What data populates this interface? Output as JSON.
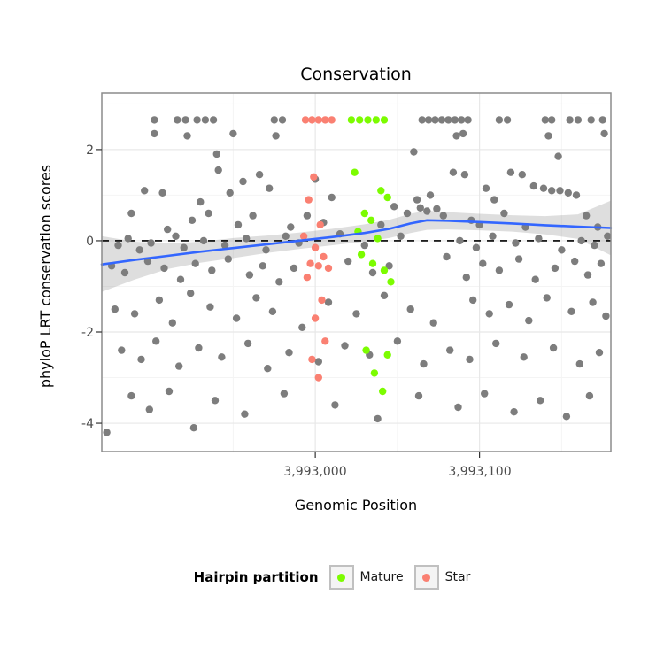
{
  "title": "Conservation",
  "axes": {
    "x_label": "Genomic Position",
    "y_label": "phyloP LRT conservation scores",
    "x_ticks": [
      {
        "value": 3993000,
        "label": "3,993,000"
      },
      {
        "value": 3993100,
        "label": "3,993,100"
      }
    ],
    "y_ticks": [
      {
        "value": -4,
        "label": "-4"
      },
      {
        "value": -2,
        "label": "-2"
      },
      {
        "value": 0,
        "label": "0"
      },
      {
        "value": 2,
        "label": "2"
      }
    ]
  },
  "legend": {
    "title": "Hairpin partition",
    "items": [
      {
        "label": "Mature",
        "color": "#7CFC00"
      },
      {
        "label": "Star",
        "color": "#FA8072"
      }
    ]
  },
  "colors": {
    "point_default": "#7d7d7d",
    "mature": "#7CFC00",
    "star": "#FA8072",
    "smooth_line": "#3366FF",
    "ribbon": "#999999",
    "panel_border": "#8c8c8c",
    "grid_major": "#e8e8e8",
    "grid_minor": "#f4f4f4",
    "reference_line": "#000000"
  },
  "chart_data": {
    "type": "scatter",
    "title": "Conservation",
    "xlabel": "Genomic Position",
    "ylabel": "phyloP LRT conservation scores",
    "xlim": [
      3992870,
      3993180
    ],
    "ylim": [
      -4.62,
      3.24
    ],
    "x_major": [
      3993000,
      3993100
    ],
    "x_minor": [
      3992950,
      3993050,
      3993150
    ],
    "y_major": [
      -4,
      -2,
      0,
      2
    ],
    "y_minor": [
      -3,
      -1,
      1,
      3
    ],
    "reference_line_y": 0,
    "legend_position": "bottom",
    "series": [
      {
        "name": "Other",
        "color": "#7d7d7d",
        "points": [
          [
            3992902,
            2.65
          ],
          [
            3992916,
            2.65
          ],
          [
            3992921,
            2.65
          ],
          [
            3992928,
            2.65
          ],
          [
            3992933,
            2.65
          ],
          [
            3992938,
            2.65
          ],
          [
            3992975,
            2.65
          ],
          [
            3992980,
            2.65
          ],
          [
            3993065,
            2.65
          ],
          [
            3993069,
            2.65
          ],
          [
            3993073,
            2.65
          ],
          [
            3993077,
            2.65
          ],
          [
            3993081,
            2.65
          ],
          [
            3993085,
            2.65
          ],
          [
            3993089,
            2.65
          ],
          [
            3993093,
            2.65
          ],
          [
            3993112,
            2.65
          ],
          [
            3993117,
            2.65
          ],
          [
            3993140,
            2.65
          ],
          [
            3993144,
            2.65
          ],
          [
            3993155,
            2.65
          ],
          [
            3993160,
            2.65
          ],
          [
            3993168,
            2.65
          ],
          [
            3993175,
            2.65
          ],
          [
            3992902,
            2.35
          ],
          [
            3992922,
            2.3
          ],
          [
            3992950,
            2.35
          ],
          [
            3992976,
            2.3
          ],
          [
            3993086,
            2.3
          ],
          [
            3993090,
            2.35
          ],
          [
            3993142,
            2.3
          ],
          [
            3993176,
            2.35
          ],
          [
            3992940,
            1.9
          ],
          [
            3993148,
            1.85
          ],
          [
            3993060,
            1.95
          ],
          [
            3992896,
            1.1
          ],
          [
            3992907,
            1.05
          ],
          [
            3992941,
            1.55
          ],
          [
            3992948,
            1.05
          ],
          [
            3992956,
            1.3
          ],
          [
            3992966,
            1.45
          ],
          [
            3992972,
            1.15
          ],
          [
            3993000,
            1.35
          ],
          [
            3993010,
            0.95
          ],
          [
            3993084,
            1.5
          ],
          [
            3993091,
            1.45
          ],
          [
            3993104,
            1.15
          ],
          [
            3993109,
            0.9
          ],
          [
            3993119,
            1.5
          ],
          [
            3993126,
            1.45
          ],
          [
            3993133,
            1.2
          ],
          [
            3993139,
            1.15
          ],
          [
            3993144,
            1.1
          ],
          [
            3993149,
            1.1
          ],
          [
            3993154,
            1.05
          ],
          [
            3993159,
            1.0
          ],
          [
            3992930,
            0.85
          ],
          [
            3993062,
            0.9
          ],
          [
            3993070,
            1.0
          ],
          [
            3992888,
            0.6
          ],
          [
            3992925,
            0.45
          ],
          [
            3992935,
            0.6
          ],
          [
            3992953,
            0.35
          ],
          [
            3992962,
            0.55
          ],
          [
            3992985,
            0.3
          ],
          [
            3992995,
            0.55
          ],
          [
            3993005,
            0.4
          ],
          [
            3993048,
            0.75
          ],
          [
            3993056,
            0.6
          ],
          [
            3993064,
            0.72
          ],
          [
            3993068,
            0.65
          ],
          [
            3993074,
            0.7
          ],
          [
            3993078,
            0.55
          ],
          [
            3993095,
            0.45
          ],
          [
            3993100,
            0.35
          ],
          [
            3993115,
            0.6
          ],
          [
            3993128,
            0.3
          ],
          [
            3993165,
            0.55
          ],
          [
            3993172,
            0.3
          ],
          [
            3992910,
            0.25
          ],
          [
            3993040,
            0.35
          ],
          [
            3992880,
            -0.1
          ],
          [
            3992886,
            0.05
          ],
          [
            3992893,
            -0.2
          ],
          [
            3992900,
            -0.05
          ],
          [
            3992915,
            0.1
          ],
          [
            3992920,
            -0.15
          ],
          [
            3992932,
            0.0
          ],
          [
            3992945,
            -0.1
          ],
          [
            3992958,
            0.05
          ],
          [
            3992970,
            -0.2
          ],
          [
            3992982,
            0.1
          ],
          [
            3992990,
            -0.05
          ],
          [
            3993015,
            0.15
          ],
          [
            3993030,
            -0.1
          ],
          [
            3993052,
            0.1
          ],
          [
            3993088,
            0.0
          ],
          [
            3993098,
            -0.15
          ],
          [
            3993108,
            0.1
          ],
          [
            3993122,
            -0.05
          ],
          [
            3993136,
            0.05
          ],
          [
            3993150,
            -0.2
          ],
          [
            3993162,
            0.0
          ],
          [
            3993170,
            -0.1
          ],
          [
            3993178,
            0.1
          ],
          [
            3992876,
            -0.55
          ],
          [
            3992884,
            -0.7
          ],
          [
            3992898,
            -0.45
          ],
          [
            3992908,
            -0.6
          ],
          [
            3992918,
            -0.85
          ],
          [
            3992927,
            -0.5
          ],
          [
            3992937,
            -0.65
          ],
          [
            3992947,
            -0.4
          ],
          [
            3992960,
            -0.75
          ],
          [
            3992968,
            -0.55
          ],
          [
            3992978,
            -0.9
          ],
          [
            3992987,
            -0.6
          ],
          [
            3993020,
            -0.45
          ],
          [
            3993035,
            -0.7
          ],
          [
            3993045,
            -0.55
          ],
          [
            3993080,
            -0.35
          ],
          [
            3993092,
            -0.8
          ],
          [
            3993102,
            -0.5
          ],
          [
            3993112,
            -0.65
          ],
          [
            3993124,
            -0.4
          ],
          [
            3993134,
            -0.85
          ],
          [
            3993146,
            -0.6
          ],
          [
            3993158,
            -0.45
          ],
          [
            3993166,
            -0.75
          ],
          [
            3993174,
            -0.5
          ],
          [
            3992878,
            -1.5
          ],
          [
            3992890,
            -1.6
          ],
          [
            3992905,
            -1.3
          ],
          [
            3992913,
            -1.8
          ],
          [
            3992924,
            -1.15
          ],
          [
            3992936,
            -1.45
          ],
          [
            3992952,
            -1.7
          ],
          [
            3992964,
            -1.25
          ],
          [
            3992974,
            -1.55
          ],
          [
            3992992,
            -1.9
          ],
          [
            3993008,
            -1.35
          ],
          [
            3993025,
            -1.6
          ],
          [
            3993042,
            -1.2
          ],
          [
            3993058,
            -1.5
          ],
          [
            3993072,
            -1.8
          ],
          [
            3993096,
            -1.3
          ],
          [
            3993106,
            -1.6
          ],
          [
            3993118,
            -1.4
          ],
          [
            3993130,
            -1.75
          ],
          [
            3993141,
            -1.25
          ],
          [
            3993156,
            -1.55
          ],
          [
            3993169,
            -1.35
          ],
          [
            3993177,
            -1.65
          ],
          [
            3992882,
            -2.4
          ],
          [
            3992894,
            -2.6
          ],
          [
            3992903,
            -2.2
          ],
          [
            3992917,
            -2.75
          ],
          [
            3992929,
            -2.35
          ],
          [
            3992943,
            -2.55
          ],
          [
            3992959,
            -2.25
          ],
          [
            3992971,
            -2.8
          ],
          [
            3992984,
            -2.45
          ],
          [
            3993002,
            -2.65
          ],
          [
            3993018,
            -2.3
          ],
          [
            3993033,
            -2.5
          ],
          [
            3993050,
            -2.2
          ],
          [
            3993066,
            -2.7
          ],
          [
            3993082,
            -2.4
          ],
          [
            3993094,
            -2.6
          ],
          [
            3993110,
            -2.25
          ],
          [
            3993127,
            -2.55
          ],
          [
            3993145,
            -2.35
          ],
          [
            3993161,
            -2.7
          ],
          [
            3993173,
            -2.45
          ],
          [
            3992888,
            -3.4
          ],
          [
            3992899,
            -3.7
          ],
          [
            3992911,
            -3.3
          ],
          [
            3992926,
            -4.1
          ],
          [
            3992939,
            -3.5
          ],
          [
            3992957,
            -3.8
          ],
          [
            3992981,
            -3.35
          ],
          [
            3993012,
            -3.6
          ],
          [
            3993038,
            -3.9
          ],
          [
            3993063,
            -3.4
          ],
          [
            3993087,
            -3.65
          ],
          [
            3993103,
            -3.35
          ],
          [
            3993121,
            -3.75
          ],
          [
            3993137,
            -3.5
          ],
          [
            3993153,
            -3.85
          ],
          [
            3993167,
            -3.4
          ],
          [
            3992873,
            -4.2
          ]
        ]
      },
      {
        "name": "Mature",
        "color": "#7CFC00",
        "points": [
          [
            3993022,
            2.65
          ],
          [
            3993027,
            2.65
          ],
          [
            3993032,
            2.65
          ],
          [
            3993037,
            2.65
          ],
          [
            3993042,
            2.65
          ],
          [
            3993024,
            1.5
          ],
          [
            3993040,
            1.1
          ],
          [
            3993044,
            0.95
          ],
          [
            3993030,
            0.6
          ],
          [
            3993034,
            0.45
          ],
          [
            3993026,
            0.2
          ],
          [
            3993038,
            0.05
          ],
          [
            3993028,
            -0.3
          ],
          [
            3993035,
            -0.5
          ],
          [
            3993042,
            -0.65
          ],
          [
            3993046,
            -0.9
          ],
          [
            3993031,
            -2.4
          ],
          [
            3993044,
            -2.5
          ],
          [
            3993036,
            -2.9
          ],
          [
            3993041,
            -3.3
          ]
        ]
      },
      {
        "name": "Star",
        "color": "#FA8072",
        "points": [
          [
            3992994,
            2.65
          ],
          [
            3992998,
            2.65
          ],
          [
            3993002,
            2.65
          ],
          [
            3993006,
            2.65
          ],
          [
            3993010,
            2.65
          ],
          [
            3992999,
            1.4
          ],
          [
            3992996,
            0.9
          ],
          [
            3993003,
            0.35
          ],
          [
            3992993,
            0.1
          ],
          [
            3993000,
            -0.15
          ],
          [
            3993005,
            -0.35
          ],
          [
            3992997,
            -0.5
          ],
          [
            3993002,
            -0.55
          ],
          [
            3993008,
            -0.6
          ],
          [
            3992995,
            -0.8
          ],
          [
            3993004,
            -1.3
          ],
          [
            3993000,
            -1.7
          ],
          [
            3993006,
            -2.2
          ],
          [
            3992998,
            -2.6
          ],
          [
            3993002,
            -3.0
          ]
        ]
      }
    ],
    "smooth": {
      "color": "#3366FF",
      "line": [
        [
          3992870,
          -0.52
        ],
        [
          3992890,
          -0.42
        ],
        [
          3992910,
          -0.33
        ],
        [
          3992930,
          -0.24
        ],
        [
          3992950,
          -0.16
        ],
        [
          3992970,
          -0.08
        ],
        [
          3992990,
          0.0
        ],
        [
          3993010,
          0.08
        ],
        [
          3993030,
          0.17
        ],
        [
          3993045,
          0.26
        ],
        [
          3993058,
          0.38
        ],
        [
          3993068,
          0.45
        ],
        [
          3993080,
          0.44
        ],
        [
          3993100,
          0.41
        ],
        [
          3993120,
          0.38
        ],
        [
          3993140,
          0.34
        ],
        [
          3993160,
          0.31
        ],
        [
          3993180,
          0.28
        ]
      ],
      "ribbon": [
        [
          3992870,
          -1.12,
          0.1
        ],
        [
          3992890,
          -0.85,
          -0.02
        ],
        [
          3992910,
          -0.62,
          -0.06
        ],
        [
          3992930,
          -0.48,
          -0.02
        ],
        [
          3992950,
          -0.38,
          0.06
        ],
        [
          3992970,
          -0.27,
          0.11
        ],
        [
          3992990,
          -0.18,
          0.18
        ],
        [
          3993010,
          -0.1,
          0.26
        ],
        [
          3993030,
          -0.02,
          0.36
        ],
        [
          3993045,
          0.06,
          0.46
        ],
        [
          3993058,
          0.17,
          0.59
        ],
        [
          3993068,
          0.24,
          0.66
        ],
        [
          3993080,
          0.25,
          0.63
        ],
        [
          3993100,
          0.23,
          0.59
        ],
        [
          3993120,
          0.2,
          0.56
        ],
        [
          3993140,
          0.14,
          0.54
        ],
        [
          3993160,
          0.04,
          0.58
        ],
        [
          3993180,
          -0.32,
          0.88
        ]
      ]
    }
  }
}
